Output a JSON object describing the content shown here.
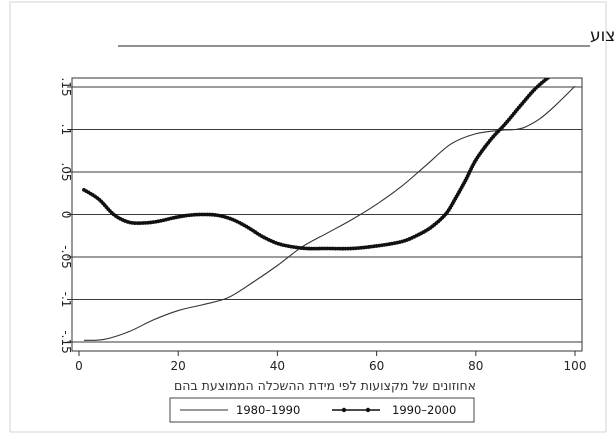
{
  "chart_data": {
    "type": "line",
    "title": "אחוזי שינוי בתעסוקה במקצועות לפי ההשכלה הממוצעת במקצוע",
    "xlabel": "אחוזונים של מקצועות לפי מידת ההשכלה הממוצעת בהם",
    "ylabel": "",
    "xlim": [
      0,
      100
    ],
    "ylim": [
      -0.15,
      0.15
    ],
    "xticks": [
      0,
      20,
      40,
      60,
      80,
      100
    ],
    "yticks": [
      -0.15,
      -0.1,
      -0.05,
      0,
      0.05,
      0.1,
      0.15
    ],
    "ytick_labels": [
      "-.15",
      "-.1",
      "-.05",
      "0",
      ".05",
      ".1",
      ".15"
    ],
    "y_tick_labels_rotated": true,
    "grid": "horizontal",
    "legend_position": "bottom",
    "series": [
      {
        "name": "1980–1990",
        "color": "#333333",
        "marker": "none",
        "x": [
          1,
          5,
          10,
          15,
          20,
          25,
          30,
          35,
          40,
          45,
          50,
          55,
          60,
          65,
          70,
          75,
          80,
          85,
          88,
          90,
          93,
          96,
          100
        ],
        "y": [
          -0.148,
          -0.147,
          -0.138,
          -0.124,
          -0.113,
          -0.106,
          -0.098,
          -0.08,
          -0.06,
          -0.038,
          -0.022,
          -0.006,
          0.012,
          0.033,
          0.058,
          0.083,
          0.095,
          0.099,
          0.1,
          0.103,
          0.113,
          0.128,
          0.151
        ]
      },
      {
        "name": "1990–2000",
        "color": "#111111",
        "marker": "dot",
        "x": [
          1,
          4,
          7,
          10,
          13,
          16,
          19,
          22,
          25,
          28,
          31,
          34,
          37,
          40,
          43,
          46,
          50,
          55,
          60,
          65,
          68,
          71,
          74,
          76,
          78,
          80,
          83,
          86,
          89,
          92,
          95
        ],
        "y": [
          0.029,
          0.018,
          0.0,
          -0.009,
          -0.01,
          -0.008,
          -0.004,
          -0.001,
          0.0,
          -0.001,
          -0.006,
          -0.015,
          -0.026,
          -0.034,
          -0.038,
          -0.04,
          -0.04,
          -0.04,
          -0.037,
          -0.032,
          -0.025,
          -0.015,
          0.001,
          0.02,
          0.041,
          0.064,
          0.088,
          0.107,
          0.128,
          0.148,
          0.163
        ]
      }
    ]
  }
}
